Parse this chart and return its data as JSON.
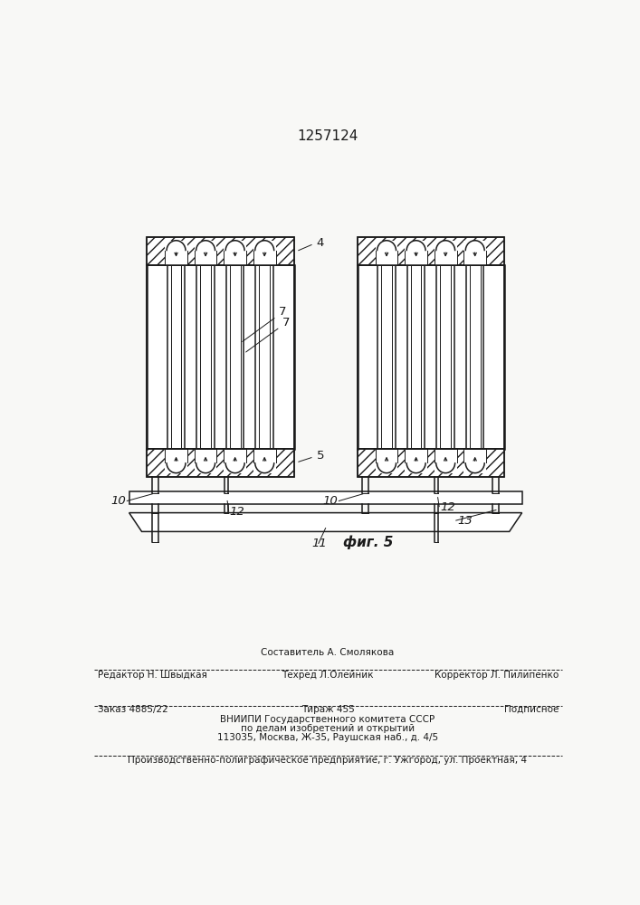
{
  "title": "1257124",
  "fig_label": "фиг. 5",
  "bg_color": "#f8f8f6",
  "line_color": "#1a1a1a",
  "label_4": "4",
  "label_5": "5",
  "label_7a": "7",
  "label_7b": "7",
  "label_10a": "10",
  "label_10b": "10",
  "label_11": "11",
  "label_12a": "12",
  "label_12b": "12",
  "label_13": "13",
  "footer_line0_center": "Составитель А. Смолякова",
  "footer_line1_left": "Редактор Н. Швыдкая",
  "footer_line1_center": "Техред Л.Олейник",
  "footer_line1_right": "Корректор Л. Пилипенко",
  "footer_line2_left": "Заказ 4885/22",
  "footer_line2_center": "Тираж 455",
  "footer_line2_right": "Подписное",
  "footer_line3": "ВНИИПИ Государственного комитета СССР",
  "footer_line4": "по делам изобретений и открытий",
  "footer_line5": "113035, Москва, Ж-35, Раушская наб., д. 4/5",
  "footer_line6": "Производственно-полиграфическое предприятие, г. Ужгород, ул. Проектная, 4"
}
